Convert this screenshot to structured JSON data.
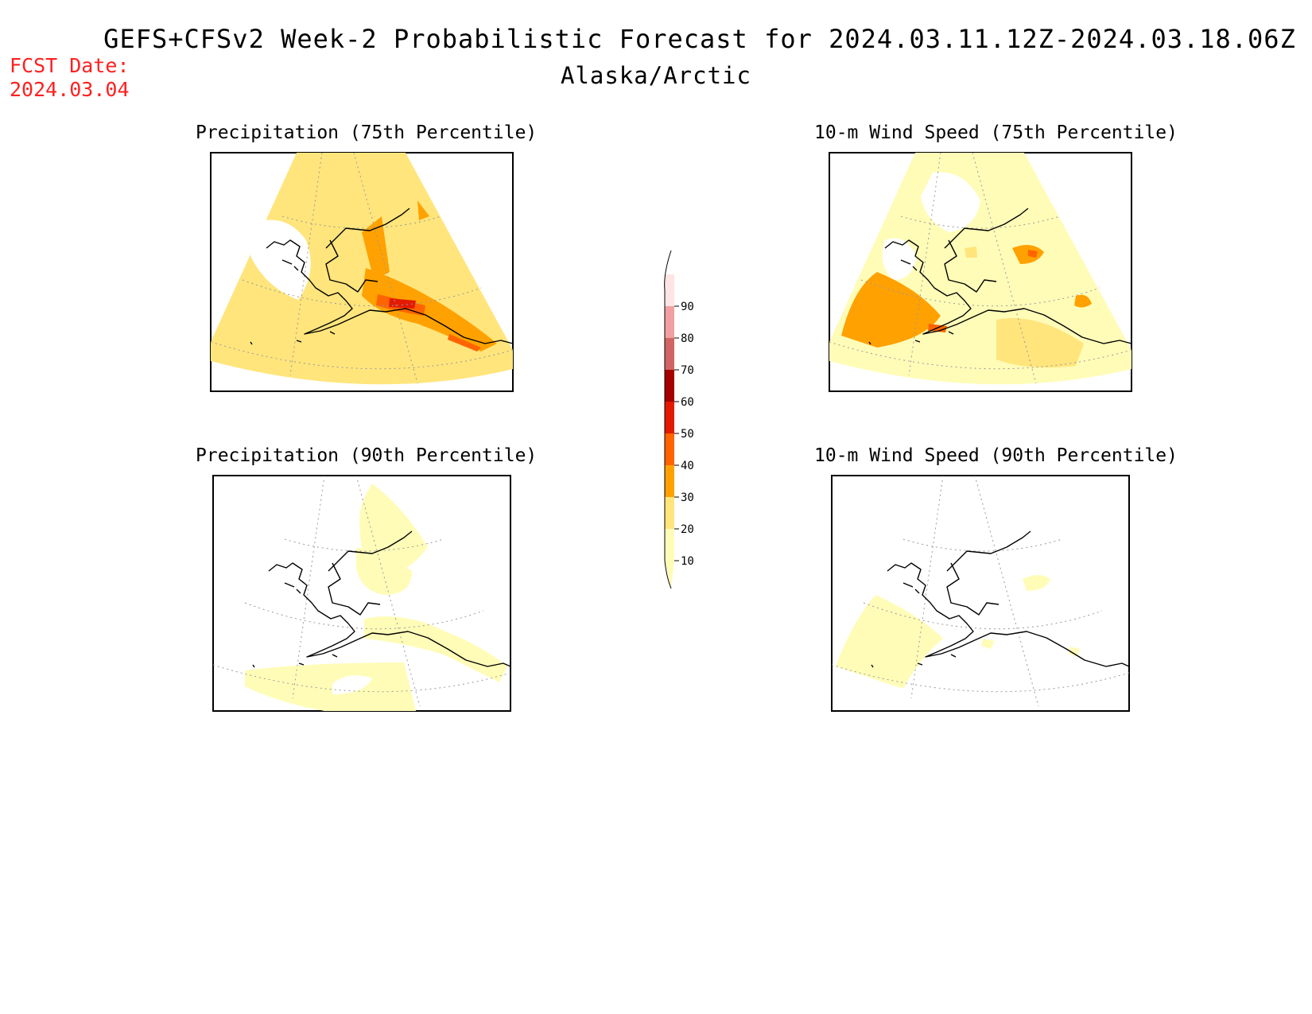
{
  "header": {
    "title": "GEFS+CFSv2 Week-2 Probabilistic Forecast for 2024.03.11.12Z-2024.03.18.06Z",
    "subtitle": "Alaska/Arctic",
    "fcst_label": "FCST Date:",
    "fcst_value": "2024.03.04"
  },
  "panels": {
    "precip75": {
      "title": "Precipitation (75th Percentile)"
    },
    "wind75": {
      "title": "10-m Wind Speed (75th Percentile)"
    },
    "precip90": {
      "title": "Precipitation (90th Percentile)"
    },
    "wind90": {
      "title": "10-m Wind Speed (90th Percentile)"
    }
  },
  "colorbar": {
    "levels": [
      "10",
      "20",
      "30",
      "40",
      "50",
      "60",
      "70",
      "80",
      "90"
    ],
    "colors": [
      "#fffcb8",
      "#ffe57c",
      "#ffa100",
      "#ff6400",
      "#e31a00",
      "#a50000",
      "#d26464",
      "#f0a0a0",
      "#ffe4e4"
    ]
  }
}
